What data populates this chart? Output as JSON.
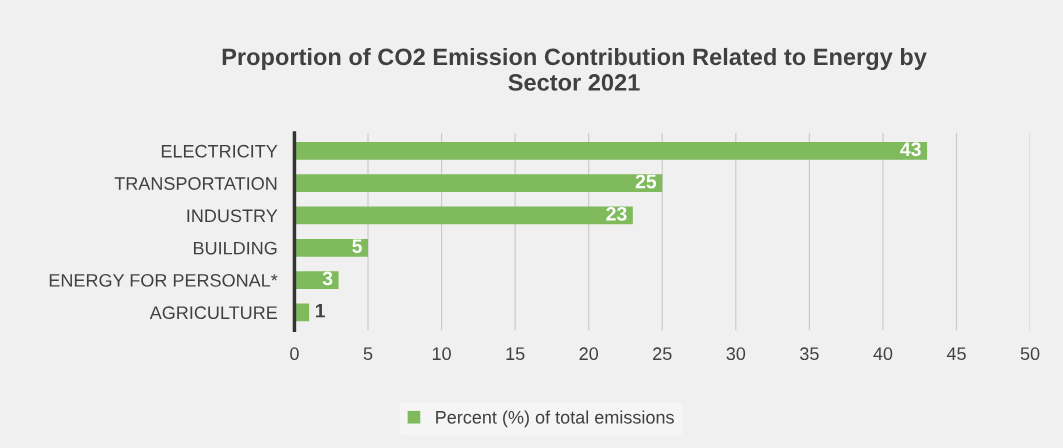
{
  "chart_data": {
    "type": "bar",
    "orientation": "horizontal",
    "title": "Proportion of CO2 Emission Contribution Related to Energy by Sector 2021",
    "categories": [
      "ELECTRICITY",
      "TRANSPORTATION",
      "INDUSTRY",
      "BUILDING",
      "ENERGY FOR PERSONAL*",
      "AGRICULTURE"
    ],
    "series": [
      {
        "name": "Percent (%) of total emissions",
        "color": "#7fba5c",
        "values": [
          43,
          25,
          23,
          5,
          3,
          1
        ]
      }
    ],
    "xlim": [
      0,
      50
    ],
    "xticks": [
      0,
      5,
      10,
      15,
      20,
      25,
      30,
      35,
      40,
      45,
      50
    ],
    "grid": "x",
    "legend": "bottom",
    "data_labels": true
  }
}
